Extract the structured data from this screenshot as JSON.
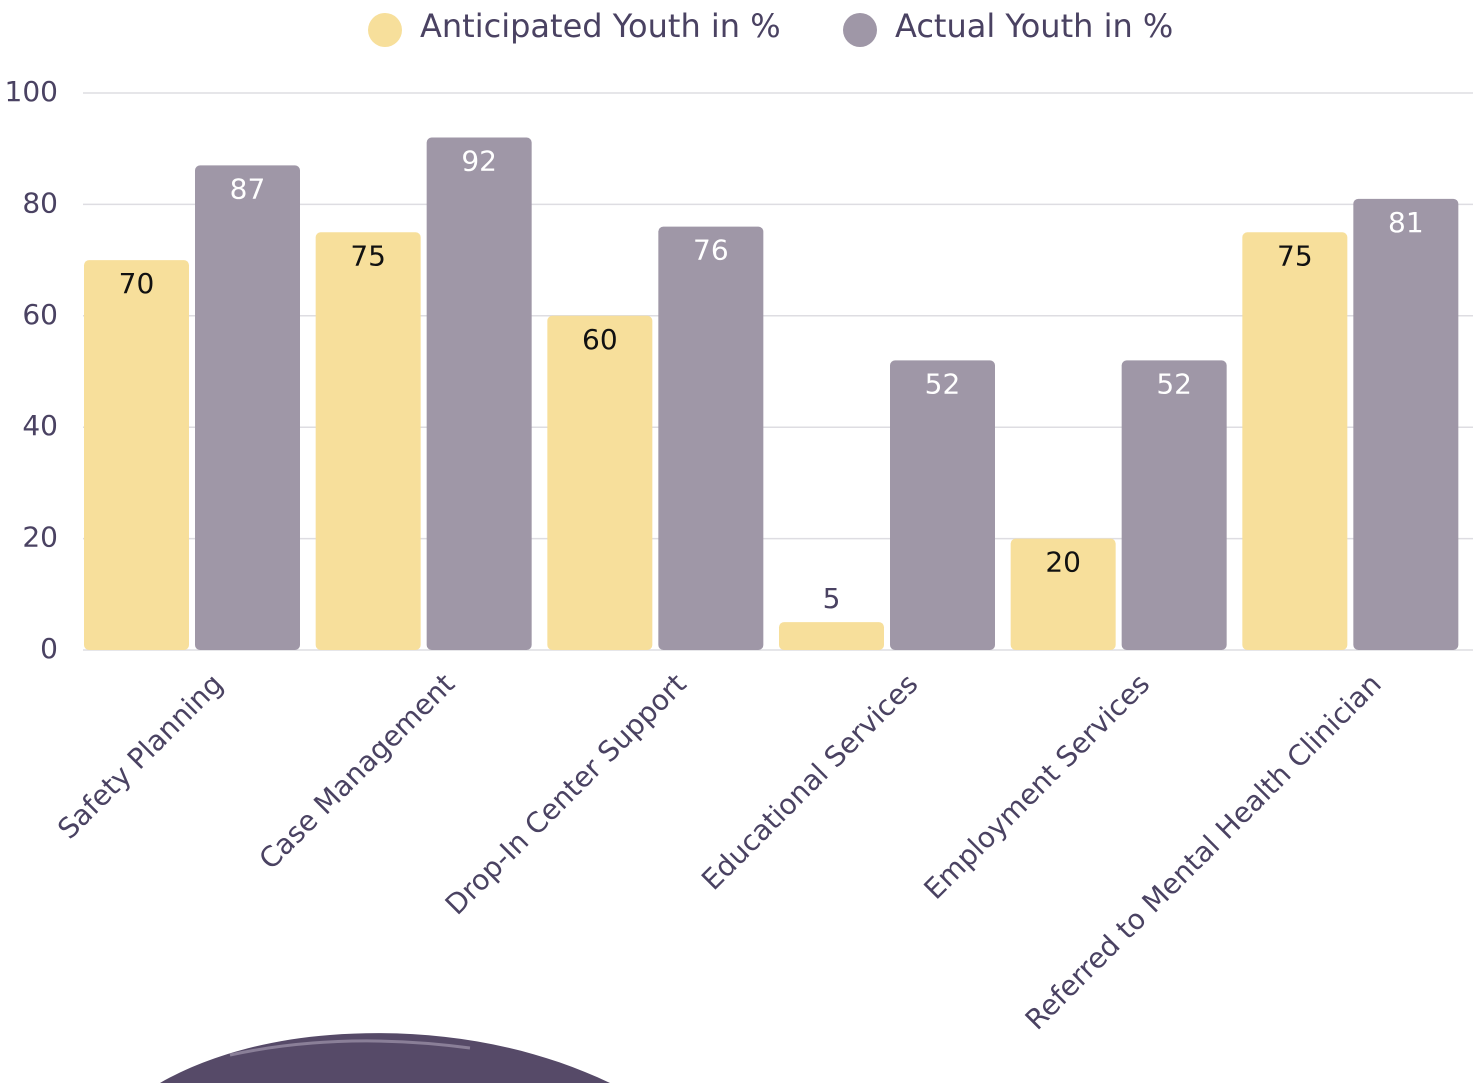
{
  "chart_data": {
    "type": "bar",
    "categories": [
      "Safety Planning",
      "Case Management",
      "Drop-In Center Support",
      "Educational Services",
      "Employment Services",
      "Referred to Mental Health Clinician"
    ],
    "series": [
      {
        "name": "Anticipated Youth in %",
        "color": "#f7df9b",
        "values": [
          70,
          75,
          60,
          5,
          20,
          75
        ]
      },
      {
        "name": "Actual Youth in %",
        "color": "#9f97a7",
        "values": [
          87,
          92,
          76,
          52,
          52,
          81
        ]
      }
    ],
    "ylim": [
      0,
      100
    ],
    "yticks": [
      0,
      20,
      40,
      60,
      80,
      100
    ],
    "grid": true,
    "legend": "top"
  }
}
